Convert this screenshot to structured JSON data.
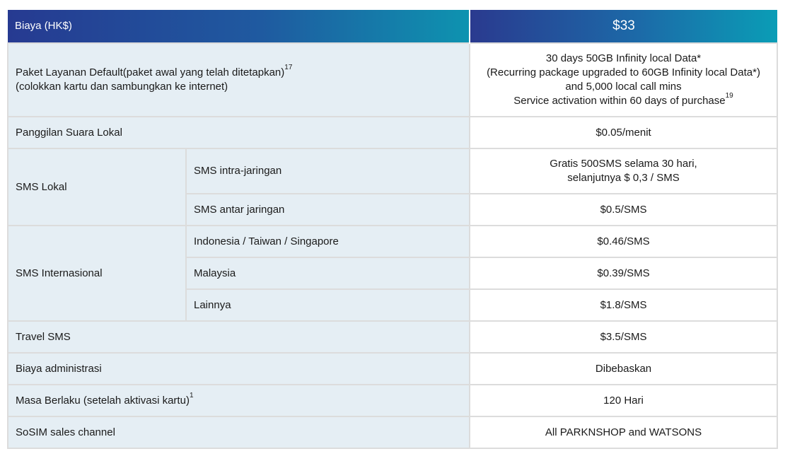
{
  "header": {
    "left": "Biaya (HK$)",
    "right": "$33"
  },
  "rows": {
    "default_plan": {
      "label_line1": "Paket Layanan Default(paket awal yang telah ditetapkan)",
      "label_sup": "17",
      "label_line2": "(colokkan kartu dan sambungkan ke internet)",
      "value_line1": "30 days 50GB Infinity local Data*",
      "value_line2": "(Recurring package upgraded to 60GB Infinity local Data*)",
      "value_line3": "and 5,000 local call mins",
      "value_line4": "Service activation within 60 days of purchase",
      "value_sup": "19"
    },
    "local_voice": {
      "label": "Panggilan Suara Lokal",
      "value": "$0.05/menit"
    },
    "local_sms": {
      "label": "SMS Lokal",
      "intra": {
        "label": "SMS intra-jaringan",
        "value_line1": "Gratis 500SMS selama 30 hari,",
        "value_line2": "selanjutnya $ 0,3 / SMS"
      },
      "inter": {
        "label": "SMS antar jaringan",
        "value": "$0.5/SMS"
      }
    },
    "intl_sms": {
      "label": "SMS Internasional",
      "items": [
        {
          "label": "Indonesia / Taiwan / Singapore",
          "value": "$0.46/SMS"
        },
        {
          "label": "Malaysia",
          "value": "$0.39/SMS"
        },
        {
          "label": "Lainnya",
          "value": "$1.8/SMS"
        }
      ]
    },
    "travel_sms": {
      "label": "Travel SMS",
      "value": "$3.5/SMS"
    },
    "admin_fee": {
      "label": "Biaya administrasi",
      "value": "Dibebaskan"
    },
    "validity": {
      "label": "Masa Berlaku (setelah aktivasi kartu)",
      "label_sup": "1",
      "value": "120 Hari"
    },
    "sales_channel": {
      "label": "SoSIM sales channel",
      "value": "All PARKNSHOP and WATSONS"
    }
  },
  "colors": {
    "header_start": "#263a91",
    "header_end": "#0e93b0",
    "label_bg": "#e5eef4",
    "border": "#dcdcdc"
  }
}
